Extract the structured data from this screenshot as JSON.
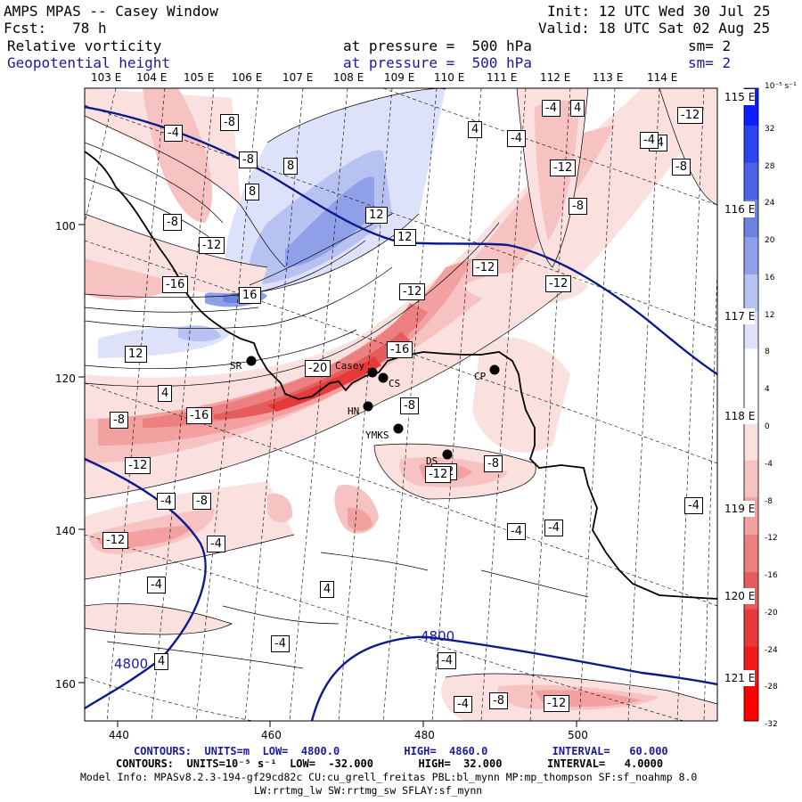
{
  "header": {
    "title": "AMPS MPAS -- Casey Window",
    "forecast": "Fcst:   78 h",
    "init": "Init: 12 UTC Wed 30 Jul 25",
    "valid": "Valid: 18 UTC Sat 02 Aug 25",
    "field1_name": "Relative vorticity",
    "field1_level": "at pressure =  500 hPa",
    "field1_sm": "sm= 2",
    "field2_name": "Geopotential height",
    "field2_level": "at pressure =  500 hPa",
    "field2_sm": "sm= 2"
  },
  "axes": {
    "top_lon_labels": [
      "103 E",
      "104 E",
      "105 E",
      "106 E",
      "107 E",
      "108 E",
      "109 E",
      "110 E",
      "111 E",
      "112 E",
      "113 E",
      "114 E"
    ],
    "right_lon_labels": [
      "115 E",
      "116 E",
      "117 E",
      "118 E",
      "119 E",
      "120 E",
      "121 E"
    ],
    "x_ticks": [
      "440",
      "460",
      "480",
      "500"
    ],
    "y_ticks": [
      "100",
      "120",
      "140",
      "160"
    ]
  },
  "colorbar": {
    "unit": "10⁻⁵ s⁻¹",
    "labels": [
      "32",
      "28",
      "24",
      "20",
      "16",
      "12",
      "8",
      "4",
      "0",
      "-4",
      "-8",
      "-12",
      "-16",
      "-20",
      "-24",
      "-28",
      "-32"
    ],
    "colors": [
      "#0a1eff",
      "#2a44f0",
      "#4a62e6",
      "#6c82e0",
      "#8fa0e8",
      "#b8c2f2",
      "#dde2fa",
      "#ffffff",
      "#ffffff",
      "#fbe0e0",
      "#f7c2c2",
      "#f2a0a0",
      "#ec7f7f",
      "#e65c5c",
      "#e63a3a",
      "#f01c1c",
      "#ff0000"
    ]
  },
  "stations": [
    "SR",
    "Casey",
    "CS",
    "CP",
    "HN",
    "YMKS",
    "DS"
  ],
  "contour_labels": {
    "vorticity": [
      "-8",
      "-4",
      "-8",
      "-4",
      "4",
      "8",
      "-8",
      "-12",
      "-16",
      "12",
      "12",
      "16",
      "-12",
      "-12",
      "-12",
      "-16",
      "-20",
      "-12",
      "-8",
      "-16",
      "12",
      "4",
      "-8",
      "-12",
      "-8",
      "-12",
      "-4",
      "-8",
      "-4",
      "-4",
      "-4",
      "-12",
      "-4",
      "4",
      "-4",
      "-4",
      "4",
      "-4",
      "-8",
      "-12",
      "8",
      "4",
      "-4",
      "-12",
      "-8",
      "-4",
      "-8",
      "-4",
      "-12",
      "-4"
    ],
    "height": [
      "4800",
      "4800"
    ]
  },
  "footer": {
    "line1": "CONTOURS:  UNITS=m  LOW=  4800.0          HIGH=  4860.0          INTERVAL=   60.000",
    "line2": "CONTOURS:  UNITS=10⁻⁵ s⁻¹  LOW=  -32.000       HIGH=  32.000       INTERVAL=   4.0000",
    "line3": "Model Info: MPASv8.2.3-194-gf29cd82c CU:cu_grell_freitas PBL:bl_mynn MP:mp_thompson SF:sf_noahmp 8.0",
    "line4": "LW:rrtmg_lw SW:rrtmg_sw SFLAY:sf_mynn"
  }
}
